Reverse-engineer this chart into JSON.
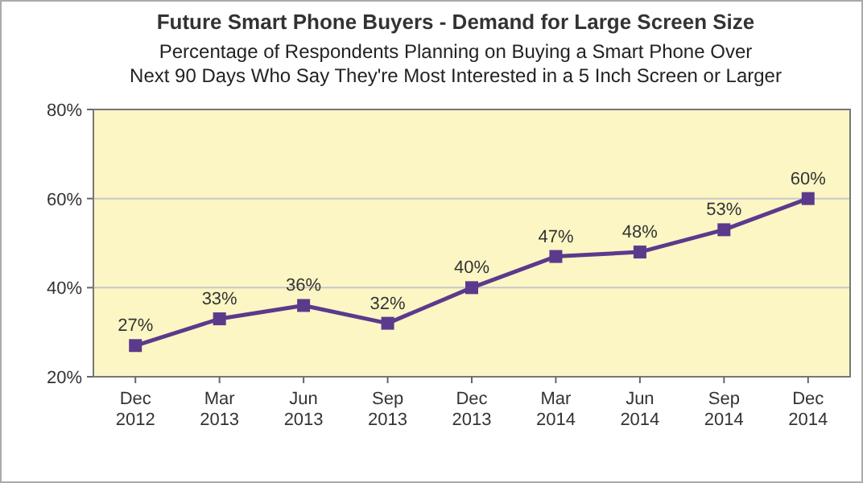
{
  "chart_data": {
    "type": "line",
    "title": "Future Smart Phone Buyers - Demand for Large Screen Size",
    "subtitle": "Percentage of Respondents Planning on Buying a Smart Phone Over\nNext 90 Days Who Say They're Most Interested in a 5 Inch Screen or Larger",
    "categories": [
      "Dec\n2012",
      "Mar\n2013",
      "Jun\n2013",
      "Sep\n2013",
      "Dec\n2013",
      "Mar\n2014",
      "Jun\n2014",
      "Sep\n2014",
      "Dec\n2014"
    ],
    "series": [
      {
        "color": "#5b3a8c",
        "values": [
          27,
          33,
          36,
          32,
          40,
          47,
          48,
          53,
          60
        ],
        "value_labels": [
          "27%",
          "33%",
          "36%",
          "32%",
          "40%",
          "47%",
          "48%",
          "53%",
          "60%"
        ]
      }
    ],
    "ylim": [
      20,
      80
    ],
    "yticks": [
      {
        "value": 20,
        "label": "20%"
      },
      {
        "value": 40,
        "label": "40%"
      },
      {
        "value": 60,
        "label": "60%"
      },
      {
        "value": 80,
        "label": "80%"
      }
    ],
    "grid": "y",
    "marker": "square",
    "line_style": "solid"
  }
}
